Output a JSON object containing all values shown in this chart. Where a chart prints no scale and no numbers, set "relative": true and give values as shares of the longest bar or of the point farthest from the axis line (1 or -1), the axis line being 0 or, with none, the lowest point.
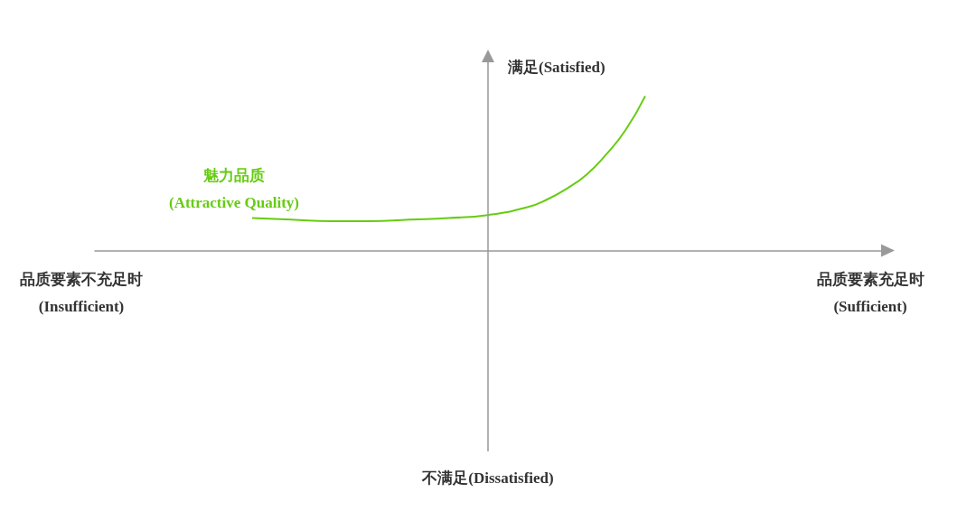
{
  "chart_data": {
    "type": "line",
    "relative": true,
    "marker": "none",
    "grid": false,
    "legend": false,
    "categories": [
      null,
      null,
      null,
      null,
      null,
      null,
      null,
      null,
      null,
      null,
      null,
      null,
      null,
      null,
      null,
      null,
      null,
      null,
      null,
      null,
      null,
      null,
      null,
      null,
      null,
      null,
      null,
      null,
      null,
      null,
      null,
      null,
      null,
      null,
      null,
      null,
      null,
      null,
      null,
      null,
      null
    ],
    "series": [
      {
        "name": "魅力品质\n(Attractive Quality)",
        "color": "#66cc11",
        "values": [
          null,
          null,
          null,
          null,
          null,
          null,
          null,
          null,
          0.21,
          null,
          0.2,
          null,
          0.19,
          null,
          0.19,
          null,
          0.2,
          null,
          0.21,
          null,
          0.23,
          null,
          0.28,
          0.33,
          0.4,
          0.49,
          0.62,
          0.78,
          1,
          null,
          null,
          null,
          null,
          null,
          null,
          null,
          null,
          null,
          null,
          null,
          null
        ]
      }
    ],
    "ylabel": "满足(Satisfied)",
    "annotations": [
      "不满足(Dissatisfied)",
      "品质要素不充足时\n(Insufficient)",
      "品质要素充足时\n(Sufficient)"
    ]
  }
}
